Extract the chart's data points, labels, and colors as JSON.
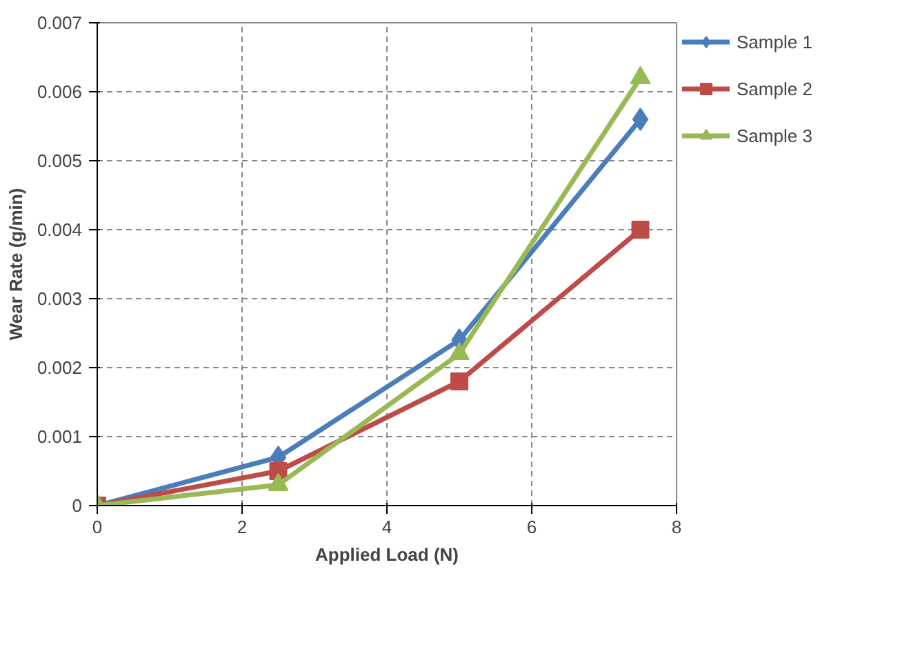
{
  "chart_data": {
    "type": "line",
    "xlabel": "Applied Load (N)",
    "ylabel": "Wear Rate (g/min)",
    "x": [
      0,
      2.5,
      5,
      7.5
    ],
    "series": [
      {
        "name": "Sample 1",
        "color": "#4a7ebb",
        "marker": "diamond",
        "values": [
          0,
          0.0007,
          0.0024,
          0.0056
        ]
      },
      {
        "name": "Sample 2",
        "color": "#be4b48",
        "marker": "square",
        "values": [
          0,
          0.0005,
          0.0018,
          0.004
        ]
      },
      {
        "name": "Sample 3",
        "color": "#98b954",
        "marker": "triangle",
        "values": [
          0,
          0.0003,
          0.0022,
          0.0062
        ]
      }
    ],
    "xlim": [
      0,
      8
    ],
    "xticks": [
      0,
      2,
      4,
      6,
      8
    ],
    "ylim": [
      0,
      0.007
    ],
    "yticks": [
      0,
      0.001,
      0.002,
      0.003,
      0.004,
      0.005,
      0.006,
      0.007
    ],
    "grid": true,
    "legend": "right",
    "line_style": "solid"
  }
}
